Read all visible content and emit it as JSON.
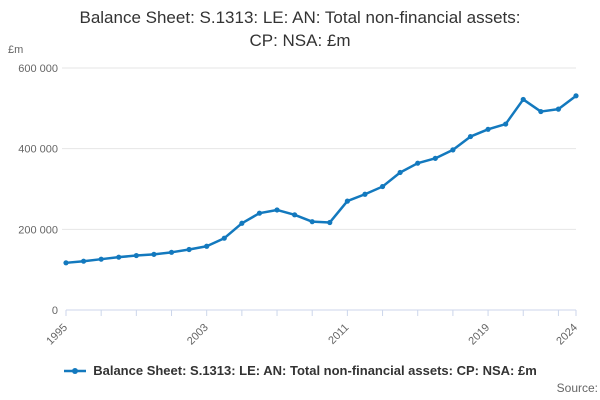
{
  "title": {
    "line1": "Balance Sheet: S.1313: LE: AN: Total non-financial assets:",
    "line2": "CP: NSA: £m"
  },
  "source_label": "Source:",
  "legend": {
    "series_label": "Balance Sheet: S.1313: LE: AN: Total non-financial assets: CP: NSA: £m"
  },
  "colors": {
    "line": "#1379be",
    "grid": "#e6e6e6",
    "axis": "#ccd6eb",
    "tick_text": "#666666",
    "title_text": "#333333"
  },
  "chart_data": {
    "type": "line",
    "title": "Balance Sheet: S.1313: LE: AN: Total non-financial assets: CP: NSA: £m",
    "ylabel": "£m",
    "xlabel": "",
    "x": [
      1995,
      1996,
      1997,
      1998,
      1999,
      2000,
      2001,
      2002,
      2003,
      2004,
      2005,
      2006,
      2007,
      2008,
      2009,
      2010,
      2011,
      2012,
      2013,
      2014,
      2015,
      2016,
      2017,
      2018,
      2019,
      2020,
      2021,
      2022,
      2023,
      2024
    ],
    "values": [
      117000,
      121000,
      126000,
      131000,
      135000,
      138000,
      143000,
      150000,
      158000,
      178000,
      215000,
      240000,
      248000,
      236000,
      219000,
      217000,
      270000,
      287000,
      306000,
      341000,
      364000,
      376000,
      397000,
      430000,
      448000,
      461000,
      522000,
      492000,
      498000,
      531000
    ],
    "ylim": [
      0,
      600000
    ],
    "yticks": [
      0,
      200000,
      400000,
      600000
    ],
    "ytick_labels": [
      "0",
      "200 000",
      "400 000",
      "600 000"
    ],
    "xtick_step": 2,
    "xticks_labeled": [
      1995,
      2003,
      2011,
      2019,
      2024
    ],
    "grid": "horizontal-only",
    "legend_position": "bottom",
    "marker": "circle"
  }
}
